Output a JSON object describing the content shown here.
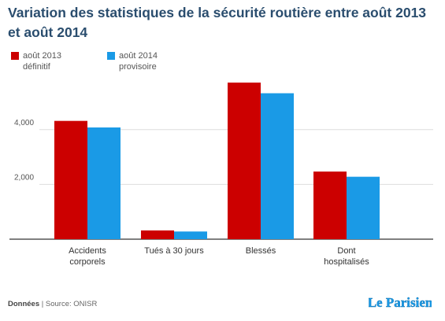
{
  "page": {
    "title": "Variation des statistiques de la sécurité routière entre août 2013 et août 2014"
  },
  "legend": [
    {
      "line1": "août 2013",
      "line2": "définitif",
      "color": "#cc0000"
    },
    {
      "line1": "août 2014",
      "line2": "provisoire",
      "color": "#1a9ae6"
    }
  ],
  "chart_data": {
    "type": "bar",
    "title": "Variation des statistiques de la sécurité routière entre août 2013 et août 2014",
    "categories": [
      [
        "Accidents",
        "corporels"
      ],
      [
        "Tués à 30 jours"
      ],
      [
        "Blessés"
      ],
      [
        "Dont",
        "hospitalisés"
      ]
    ],
    "series": [
      {
        "name": "août 2013 définitif",
        "color": "#cc0000",
        "values": [
          4320,
          320,
          5720,
          2470
        ]
      },
      {
        "name": "août 2014 provisoire",
        "color": "#1a9ae6",
        "values": [
          4080,
          280,
          5330,
          2280
        ]
      }
    ],
    "yticks": [
      2000,
      4000
    ],
    "ytick_labels": [
      "2,000",
      "4,000"
    ],
    "ylim": [
      0,
      6000
    ],
    "xlabel": "",
    "ylabel": "",
    "grid": true
  },
  "footer": {
    "label": "Données",
    "separator": " | ",
    "source": "Source: ONISR"
  },
  "logo": {
    "text": "Le Parisien",
    "color": "#1a9ae6"
  }
}
